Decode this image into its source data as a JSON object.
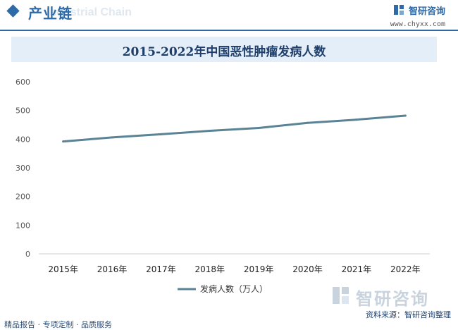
{
  "header": {
    "section_title": "产业链",
    "section_title_en": "Industrial Chain",
    "brand_name": "智研咨询",
    "brand_url": "www.chyxx.com"
  },
  "watermark_text": "智研咨询",
  "footer": {
    "left": "精品报告 · 专项定制 · 品质服务",
    "source": "资料来源：智研咨询整理"
  },
  "colors": {
    "line": "#5a8396",
    "accent": "#2f6aa8",
    "title_band": "#e3eef8"
  },
  "chart_data": {
    "type": "line",
    "title": "2015-2022年中国恶性肿瘤发病人数",
    "categories": [
      "2015年",
      "2016年",
      "2017年",
      "2018年",
      "2019年",
      "2020年",
      "2021年",
      "2022年"
    ],
    "series": [
      {
        "name": "发病人数（万人）",
        "values": [
          392,
          406,
          417,
          429,
          439,
          457,
          468,
          482
        ]
      }
    ],
    "ylim": [
      0,
      600
    ],
    "yticks": [
      0,
      100,
      200,
      300,
      400,
      500,
      600
    ],
    "grid": false,
    "legend": "bottom"
  }
}
